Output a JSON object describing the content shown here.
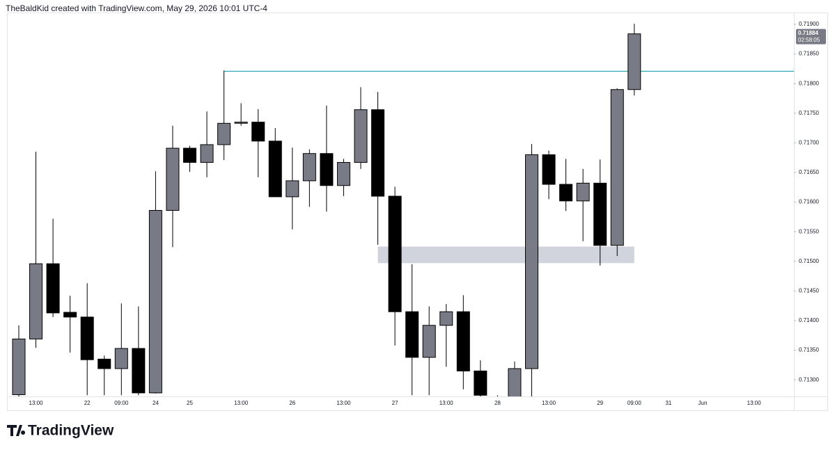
{
  "chart_data": {
    "type": "candlestick",
    "header": "TheBaldKid created with TradingView.com, May 29, 2026 10:01 UTC-4",
    "brand": "TradingView",
    "categories": [
      null,
      "13:00",
      null,
      null,
      "22",
      null,
      "09:00",
      null,
      "24",
      null,
      "25",
      null,
      null,
      "13:00",
      null,
      null,
      "26",
      null,
      null,
      "13:00",
      null,
      null,
      "27",
      null,
      null,
      "13:00",
      null,
      null,
      "28",
      null,
      null,
      "13:00",
      null,
      null,
      "29",
      null,
      "09:00",
      null,
      "31",
      null,
      "Jun",
      null,
      null,
      "13:00",
      null
    ],
    "open": [
      0.71275,
      0.71369,
      0.71496,
      0.71414,
      0.71406,
      0.71335,
      0.71319,
      0.71353,
      0.71278,
      0.71586,
      0.71691,
      0.71667,
      0.71697,
      0.71733,
      0.71735,
      0.71703,
      0.71609,
      0.71636,
      0.71682,
      0.71628,
      0.71667,
      0.71756,
      0.7161,
      0.71415,
      0.71338,
      0.71392,
      0.71415,
      0.71315,
      0.7127,
      0.71262,
      0.71319,
      0.7168,
      0.7163,
      0.71602,
      0.71632,
      0.71527,
      0.7179,
      null,
      null,
      null,
      null,
      null,
      null,
      null,
      null
    ],
    "high": [
      0.71392,
      0.71685,
      0.71572,
      0.71442,
      0.71463,
      0.71341,
      0.71429,
      0.71424,
      0.71652,
      0.71729,
      0.71695,
      0.71753,
      0.71822,
      0.71767,
      0.71757,
      0.71725,
      0.71692,
      0.71689,
      0.71763,
      0.71673,
      0.71794,
      0.71786,
      0.71626,
      0.71495,
      0.71424,
      0.71428,
      0.71443,
      0.71333,
      0.71274,
      0.71331,
      0.71698,
      0.71687,
      0.71673,
      0.71656,
      0.71672,
      0.71792,
      0.71901,
      null,
      null,
      null,
      null,
      null,
      null,
      null,
      null
    ],
    "low": [
      0.71272,
      0.71354,
      0.71406,
      0.71346,
      0.71274,
      0.71274,
      0.71274,
      0.71274,
      0.71277,
      0.71524,
      0.71651,
      0.71642,
      0.71671,
      0.71729,
      0.71642,
      0.71609,
      0.71554,
      0.71592,
      0.71584,
      0.7161,
      0.71656,
      0.71528,
      0.71358,
      0.71274,
      0.71274,
      0.71322,
      0.71284,
      0.71272,
      0.7124,
      0.71255,
      0.71265,
      0.71605,
      0.71585,
      0.71534,
      0.71493,
      0.71509,
      0.7178,
      null,
      null,
      null,
      null,
      null,
      null,
      null,
      null
    ],
    "close": [
      0.71369,
      0.71496,
      0.71413,
      0.71406,
      0.71334,
      0.71319,
      0.71353,
      0.71278,
      0.71586,
      0.71691,
      0.71667,
      0.71697,
      0.71733,
      0.71735,
      0.71703,
      0.71609,
      0.71636,
      0.71682,
      0.71628,
      0.71667,
      0.71756,
      0.7161,
      0.71415,
      0.71338,
      0.71392,
      0.71415,
      0.71315,
      0.71274,
      0.7125,
      0.71319,
      0.7168,
      0.7163,
      0.71602,
      0.71632,
      0.71527,
      0.7179,
      0.71884,
      null,
      null,
      null,
      null,
      null,
      null,
      null,
      null
    ],
    "up_color": "#787b86",
    "down_color": "#000000",
    "ylim": [
      0.71272,
      0.7192
    ],
    "yticks": [
      {
        "value": 0.713,
        "label": "0.71300"
      },
      {
        "value": 0.7135,
        "label": "0.71350"
      },
      {
        "value": 0.714,
        "label": "0.71400"
      },
      {
        "value": 0.7145,
        "label": "0.71450"
      },
      {
        "value": 0.715,
        "label": "0.71500"
      },
      {
        "value": 0.7155,
        "label": "0.71550"
      },
      {
        "value": 0.716,
        "label": "0.71600"
      },
      {
        "value": 0.7165,
        "label": "0.71650"
      },
      {
        "value": 0.717,
        "label": "0.71700"
      },
      {
        "value": 0.7175,
        "label": "0.71750"
      },
      {
        "value": 0.718,
        "label": "0.71800"
      },
      {
        "value": 0.7185,
        "label": "0.71850"
      },
      {
        "value": 0.719,
        "label": "0.71900"
      }
    ],
    "last_price": {
      "value": 0.71884,
      "label": "0.71884"
    },
    "countdown": "02:58:05",
    "hline": {
      "value": 0.71821,
      "from": 12,
      "color": "#0097a7"
    },
    "zone": {
      "low": 0.71497,
      "high": 0.71525,
      "from": 21,
      "to": 36,
      "color": "#d1d4dc"
    },
    "grid": false
  }
}
